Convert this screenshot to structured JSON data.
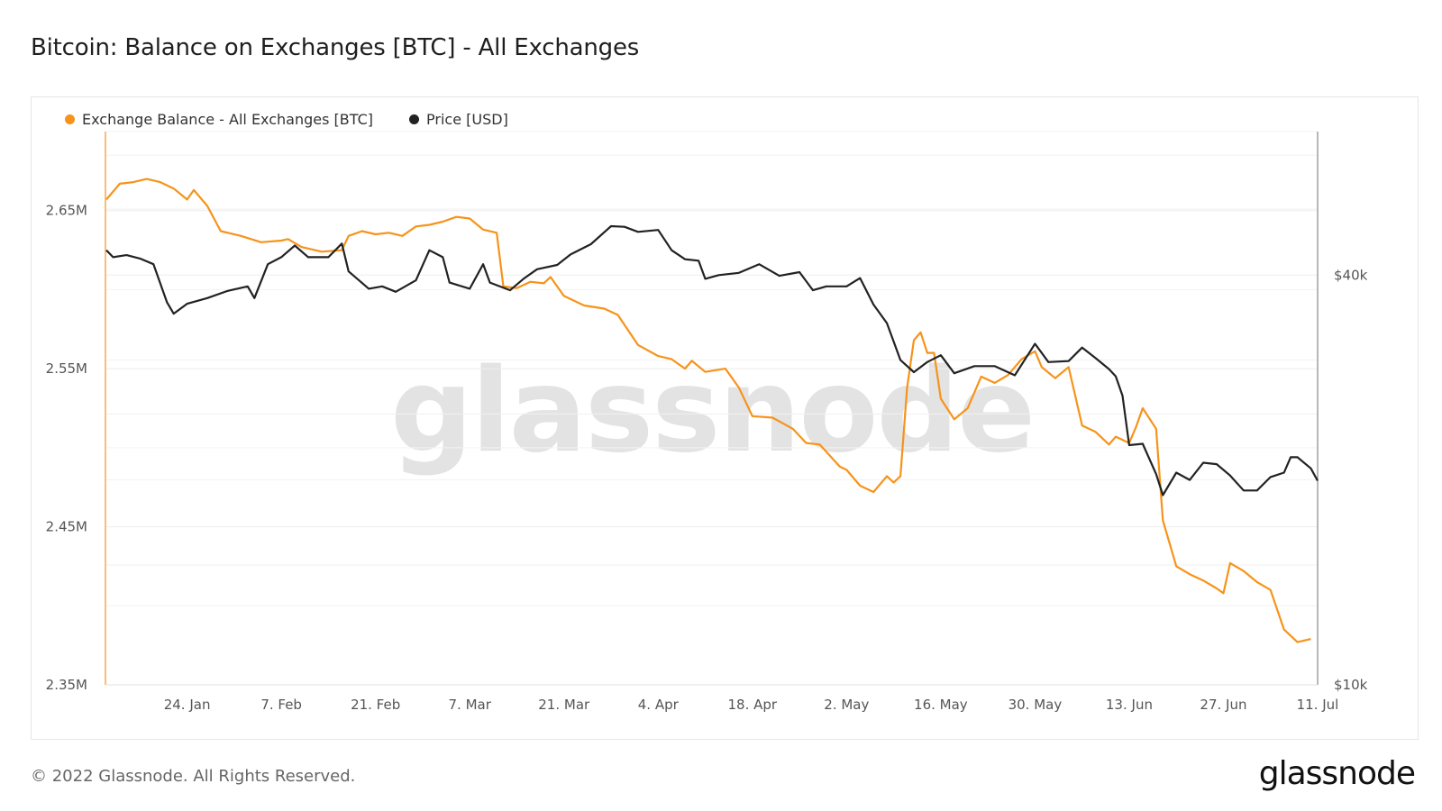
{
  "title": "Bitcoin: Balance on Exchanges [BTC] - All Exchanges",
  "legend": [
    {
      "label": "Exchange Balance - All Exchanges [BTC]",
      "color": "#f7931a"
    },
    {
      "label": "Price [USD]",
      "color": "#222222"
    }
  ],
  "watermark": "glassnode",
  "footer": "© 2022 Glassnode. All Rights Reserved.",
  "brand": "glassnode",
  "chart_data": {
    "type": "line",
    "x_tick_labels": [
      "24. Jan",
      "7. Feb",
      "21. Feb",
      "7. Mar",
      "21. Mar",
      "4. Apr",
      "18. Apr",
      "2. May",
      "16. May",
      "30. May",
      "13. Jun",
      "27. Jun",
      "11. Jul"
    ],
    "x_tick_dates": [
      "2022-01-24",
      "2022-02-07",
      "2022-02-21",
      "2022-03-07",
      "2022-03-21",
      "2022-04-04",
      "2022-04-18",
      "2022-05-02",
      "2022-05-16",
      "2022-05-30",
      "2022-06-13",
      "2022-06-27",
      "2022-07-11"
    ],
    "x_range": [
      "2022-01-12",
      "2022-07-11"
    ],
    "y_left": {
      "ticks": [
        2350000,
        2450000,
        2550000,
        2650000
      ],
      "tick_labels": [
        "2.35M",
        "2.45M",
        "2.55M",
        "2.65M"
      ],
      "range": [
        2350000,
        2700000
      ]
    },
    "y_right": {
      "scale": "log",
      "ticks": [
        10000,
        40000
      ],
      "tick_labels": [
        "$10k",
        "$40k"
      ],
      "range": [
        10000,
        65000
      ]
    },
    "grid": true,
    "legend_position": "top-left",
    "series": [
      {
        "name": "Exchange Balance - All Exchanges [BTC]",
        "axis": "left",
        "color": "#f7931a",
        "points": [
          [
            "2022-01-12",
            2657000
          ],
          [
            "2022-01-14",
            2667000
          ],
          [
            "2022-01-16",
            2668000
          ],
          [
            "2022-01-18",
            2670000
          ],
          [
            "2022-01-20",
            2668000
          ],
          [
            "2022-01-22",
            2664000
          ],
          [
            "2022-01-24",
            2657000
          ],
          [
            "2022-01-25",
            2663000
          ],
          [
            "2022-01-27",
            2653000
          ],
          [
            "2022-01-29",
            2637000
          ],
          [
            "2022-02-01",
            2634000
          ],
          [
            "2022-02-04",
            2630000
          ],
          [
            "2022-02-07",
            2631000
          ],
          [
            "2022-02-08",
            2632000
          ],
          [
            "2022-02-10",
            2627000
          ],
          [
            "2022-02-13",
            2624000
          ],
          [
            "2022-02-16",
            2625000
          ],
          [
            "2022-02-17",
            2634000
          ],
          [
            "2022-02-19",
            2637000
          ],
          [
            "2022-02-21",
            2635000
          ],
          [
            "2022-02-23",
            2636000
          ],
          [
            "2022-02-25",
            2634000
          ],
          [
            "2022-02-27",
            2640000
          ],
          [
            "2022-03-01",
            2641000
          ],
          [
            "2022-03-03",
            2643000
          ],
          [
            "2022-03-05",
            2646000
          ],
          [
            "2022-03-07",
            2645000
          ],
          [
            "2022-03-09",
            2638000
          ],
          [
            "2022-03-11",
            2636000
          ],
          [
            "2022-03-12",
            2602000
          ],
          [
            "2022-03-14",
            2601000
          ],
          [
            "2022-03-16",
            2605000
          ],
          [
            "2022-03-18",
            2604000
          ],
          [
            "2022-03-19",
            2608000
          ],
          [
            "2022-03-21",
            2596000
          ],
          [
            "2022-03-24",
            2590000
          ],
          [
            "2022-03-27",
            2588000
          ],
          [
            "2022-03-29",
            2584000
          ],
          [
            "2022-04-01",
            2565000
          ],
          [
            "2022-04-04",
            2558000
          ],
          [
            "2022-04-06",
            2556000
          ],
          [
            "2022-04-08",
            2550000
          ],
          [
            "2022-04-09",
            2555000
          ],
          [
            "2022-04-11",
            2548000
          ],
          [
            "2022-04-14",
            2550000
          ],
          [
            "2022-04-16",
            2538000
          ],
          [
            "2022-04-18",
            2520000
          ],
          [
            "2022-04-21",
            2519000
          ],
          [
            "2022-04-24",
            2512000
          ],
          [
            "2022-04-26",
            2503000
          ],
          [
            "2022-04-28",
            2502000
          ],
          [
            "2022-05-01",
            2488000
          ],
          [
            "2022-05-02",
            2486000
          ],
          [
            "2022-05-04",
            2476000
          ],
          [
            "2022-05-06",
            2472000
          ],
          [
            "2022-05-08",
            2482000
          ],
          [
            "2022-05-09",
            2478000
          ],
          [
            "2022-05-10",
            2482000
          ],
          [
            "2022-05-11",
            2538000
          ],
          [
            "2022-05-12",
            2568000
          ],
          [
            "2022-05-13",
            2573000
          ],
          [
            "2022-05-14",
            2560000
          ],
          [
            "2022-05-15",
            2560000
          ],
          [
            "2022-05-16",
            2531000
          ],
          [
            "2022-05-18",
            2518000
          ],
          [
            "2022-05-20",
            2525000
          ],
          [
            "2022-05-22",
            2545000
          ],
          [
            "2022-05-24",
            2541000
          ],
          [
            "2022-05-26",
            2546000
          ],
          [
            "2022-05-28",
            2556000
          ],
          [
            "2022-05-30",
            2561000
          ],
          [
            "2022-05-31",
            2551000
          ],
          [
            "2022-06-02",
            2544000
          ],
          [
            "2022-06-04",
            2551000
          ],
          [
            "2022-06-06",
            2514000
          ],
          [
            "2022-06-08",
            2510000
          ],
          [
            "2022-06-10",
            2502000
          ],
          [
            "2022-06-11",
            2507000
          ],
          [
            "2022-06-13",
            2503000
          ],
          [
            "2022-06-14",
            2513000
          ],
          [
            "2022-06-15",
            2525000
          ],
          [
            "2022-06-17",
            2512000
          ],
          [
            "2022-06-18",
            2454000
          ],
          [
            "2022-06-20",
            2425000
          ],
          [
            "2022-06-22",
            2420000
          ],
          [
            "2022-06-24",
            2416000
          ],
          [
            "2022-06-26",
            2411000
          ],
          [
            "2022-06-27",
            2408000
          ],
          [
            "2022-06-28",
            2427000
          ],
          [
            "2022-06-30",
            2422000
          ],
          [
            "2022-07-02",
            2415000
          ],
          [
            "2022-07-04",
            2410000
          ],
          [
            "2022-07-06",
            2385000
          ],
          [
            "2022-07-08",
            2377000
          ],
          [
            "2022-07-10",
            2379000
          ]
        ]
      },
      {
        "name": "Price [USD]",
        "axis": "right",
        "color": "#222222",
        "points": [
          [
            "2022-01-12",
            43500
          ],
          [
            "2022-01-13",
            42500
          ],
          [
            "2022-01-15",
            42800
          ],
          [
            "2022-01-17",
            42300
          ],
          [
            "2022-01-19",
            41500
          ],
          [
            "2022-01-21",
            36500
          ],
          [
            "2022-01-22",
            35100
          ],
          [
            "2022-01-24",
            36300
          ],
          [
            "2022-01-27",
            37000
          ],
          [
            "2022-01-30",
            37900
          ],
          [
            "2022-02-02",
            38500
          ],
          [
            "2022-02-03",
            37000
          ],
          [
            "2022-02-05",
            41500
          ],
          [
            "2022-02-07",
            42500
          ],
          [
            "2022-02-09",
            44200
          ],
          [
            "2022-02-11",
            42500
          ],
          [
            "2022-02-14",
            42500
          ],
          [
            "2022-02-16",
            44500
          ],
          [
            "2022-02-17",
            40500
          ],
          [
            "2022-02-20",
            38200
          ],
          [
            "2022-02-22",
            38500
          ],
          [
            "2022-02-24",
            37800
          ],
          [
            "2022-02-27",
            39300
          ],
          [
            "2022-03-01",
            43500
          ],
          [
            "2022-03-03",
            42500
          ],
          [
            "2022-03-04",
            39000
          ],
          [
            "2022-03-07",
            38200
          ],
          [
            "2022-03-09",
            41500
          ],
          [
            "2022-03-10",
            39000
          ],
          [
            "2022-03-13",
            38000
          ],
          [
            "2022-03-15",
            39500
          ],
          [
            "2022-03-17",
            40800
          ],
          [
            "2022-03-20",
            41400
          ],
          [
            "2022-03-22",
            42900
          ],
          [
            "2022-03-25",
            44400
          ],
          [
            "2022-03-28",
            47200
          ],
          [
            "2022-03-30",
            47100
          ],
          [
            "2022-04-01",
            46300
          ],
          [
            "2022-04-04",
            46600
          ],
          [
            "2022-04-06",
            43500
          ],
          [
            "2022-04-08",
            42200
          ],
          [
            "2022-04-10",
            42000
          ],
          [
            "2022-04-11",
            39500
          ],
          [
            "2022-04-13",
            40000
          ],
          [
            "2022-04-16",
            40300
          ],
          [
            "2022-04-19",
            41500
          ],
          [
            "2022-04-22",
            39900
          ],
          [
            "2022-04-25",
            40400
          ],
          [
            "2022-04-27",
            38000
          ],
          [
            "2022-04-29",
            38500
          ],
          [
            "2022-05-02",
            38500
          ],
          [
            "2022-05-04",
            39600
          ],
          [
            "2022-05-06",
            36200
          ],
          [
            "2022-05-08",
            34000
          ],
          [
            "2022-05-10",
            30000
          ],
          [
            "2022-05-12",
            28800
          ],
          [
            "2022-05-14",
            29800
          ],
          [
            "2022-05-16",
            30500
          ],
          [
            "2022-05-18",
            28700
          ],
          [
            "2022-05-21",
            29400
          ],
          [
            "2022-05-24",
            29400
          ],
          [
            "2022-05-27",
            28500
          ],
          [
            "2022-05-30",
            31700
          ],
          [
            "2022-06-01",
            29800
          ],
          [
            "2022-06-04",
            29900
          ],
          [
            "2022-06-06",
            31300
          ],
          [
            "2022-06-08",
            30200
          ],
          [
            "2022-06-10",
            29100
          ],
          [
            "2022-06-11",
            28400
          ],
          [
            "2022-06-12",
            26600
          ],
          [
            "2022-06-13",
            22500
          ],
          [
            "2022-06-15",
            22600
          ],
          [
            "2022-06-17",
            20400
          ],
          [
            "2022-06-18",
            19000
          ],
          [
            "2022-06-20",
            20500
          ],
          [
            "2022-06-22",
            20000
          ],
          [
            "2022-06-24",
            21200
          ],
          [
            "2022-06-26",
            21100
          ],
          [
            "2022-06-28",
            20300
          ],
          [
            "2022-06-30",
            19300
          ],
          [
            "2022-07-02",
            19300
          ],
          [
            "2022-07-04",
            20200
          ],
          [
            "2022-07-06",
            20500
          ],
          [
            "2022-07-07",
            21600
          ],
          [
            "2022-07-08",
            21600
          ],
          [
            "2022-07-10",
            20800
          ],
          [
            "2022-07-11",
            19950
          ]
        ]
      }
    ]
  }
}
